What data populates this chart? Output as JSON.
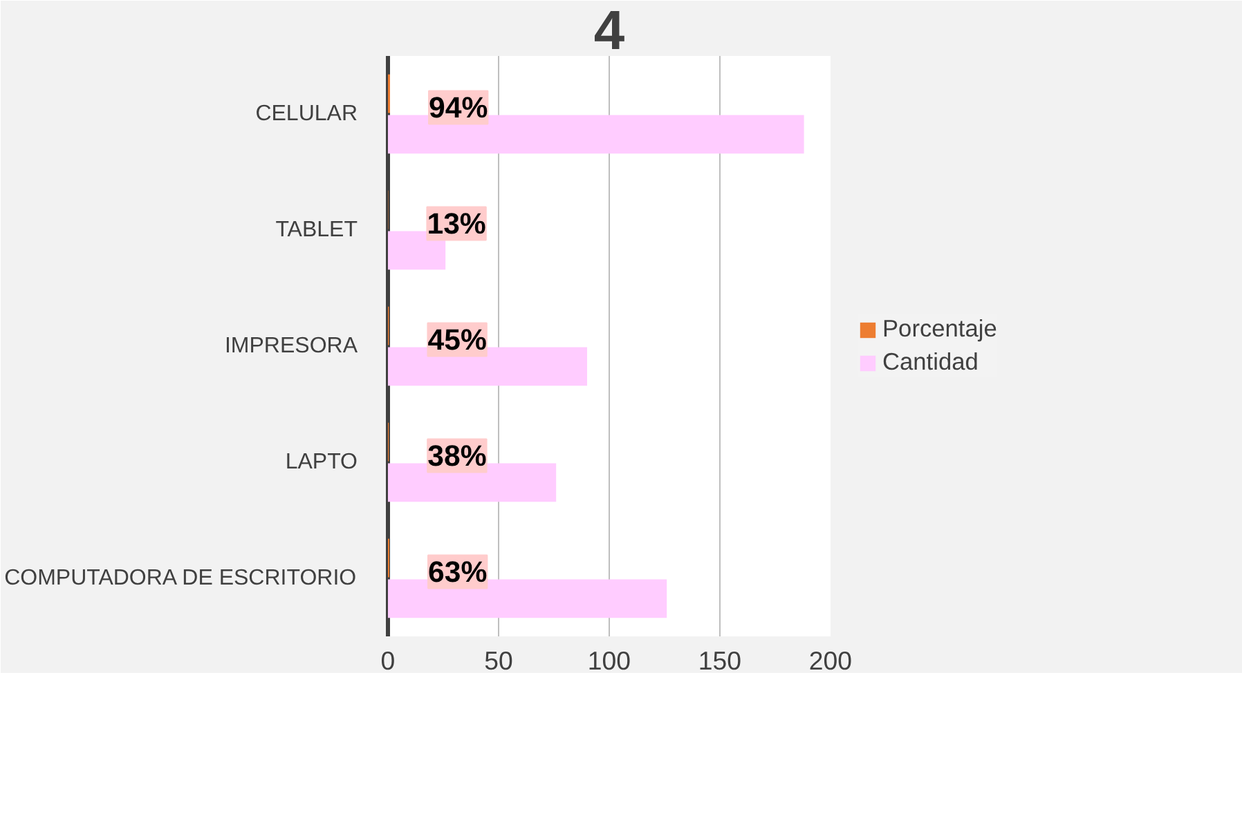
{
  "chart_data": {
    "type": "bar",
    "orientation": "horizontal",
    "title": "4",
    "categories": [
      "CELULAR",
      "TABLET",
      "IMPRESORA",
      "LAPTO",
      "COMPUTADORA DE ESCRITORIO"
    ],
    "series": [
      {
        "name": "Porcentaje",
        "color": "#ed7d31",
        "values": [
          0.94,
          0.13,
          0.45,
          0.38,
          0.63
        ],
        "value_labels": [
          "94%",
          "13%",
          "45%",
          "38%",
          "63%"
        ]
      },
      {
        "name": "Cantidad",
        "color": "#ffccff",
        "values": [
          188,
          26,
          90,
          76,
          126
        ]
      }
    ],
    "xlim": [
      0,
      200
    ],
    "xticks": [
      0,
      50,
      100,
      150,
      200
    ],
    "grid": "x",
    "legend": "right"
  }
}
